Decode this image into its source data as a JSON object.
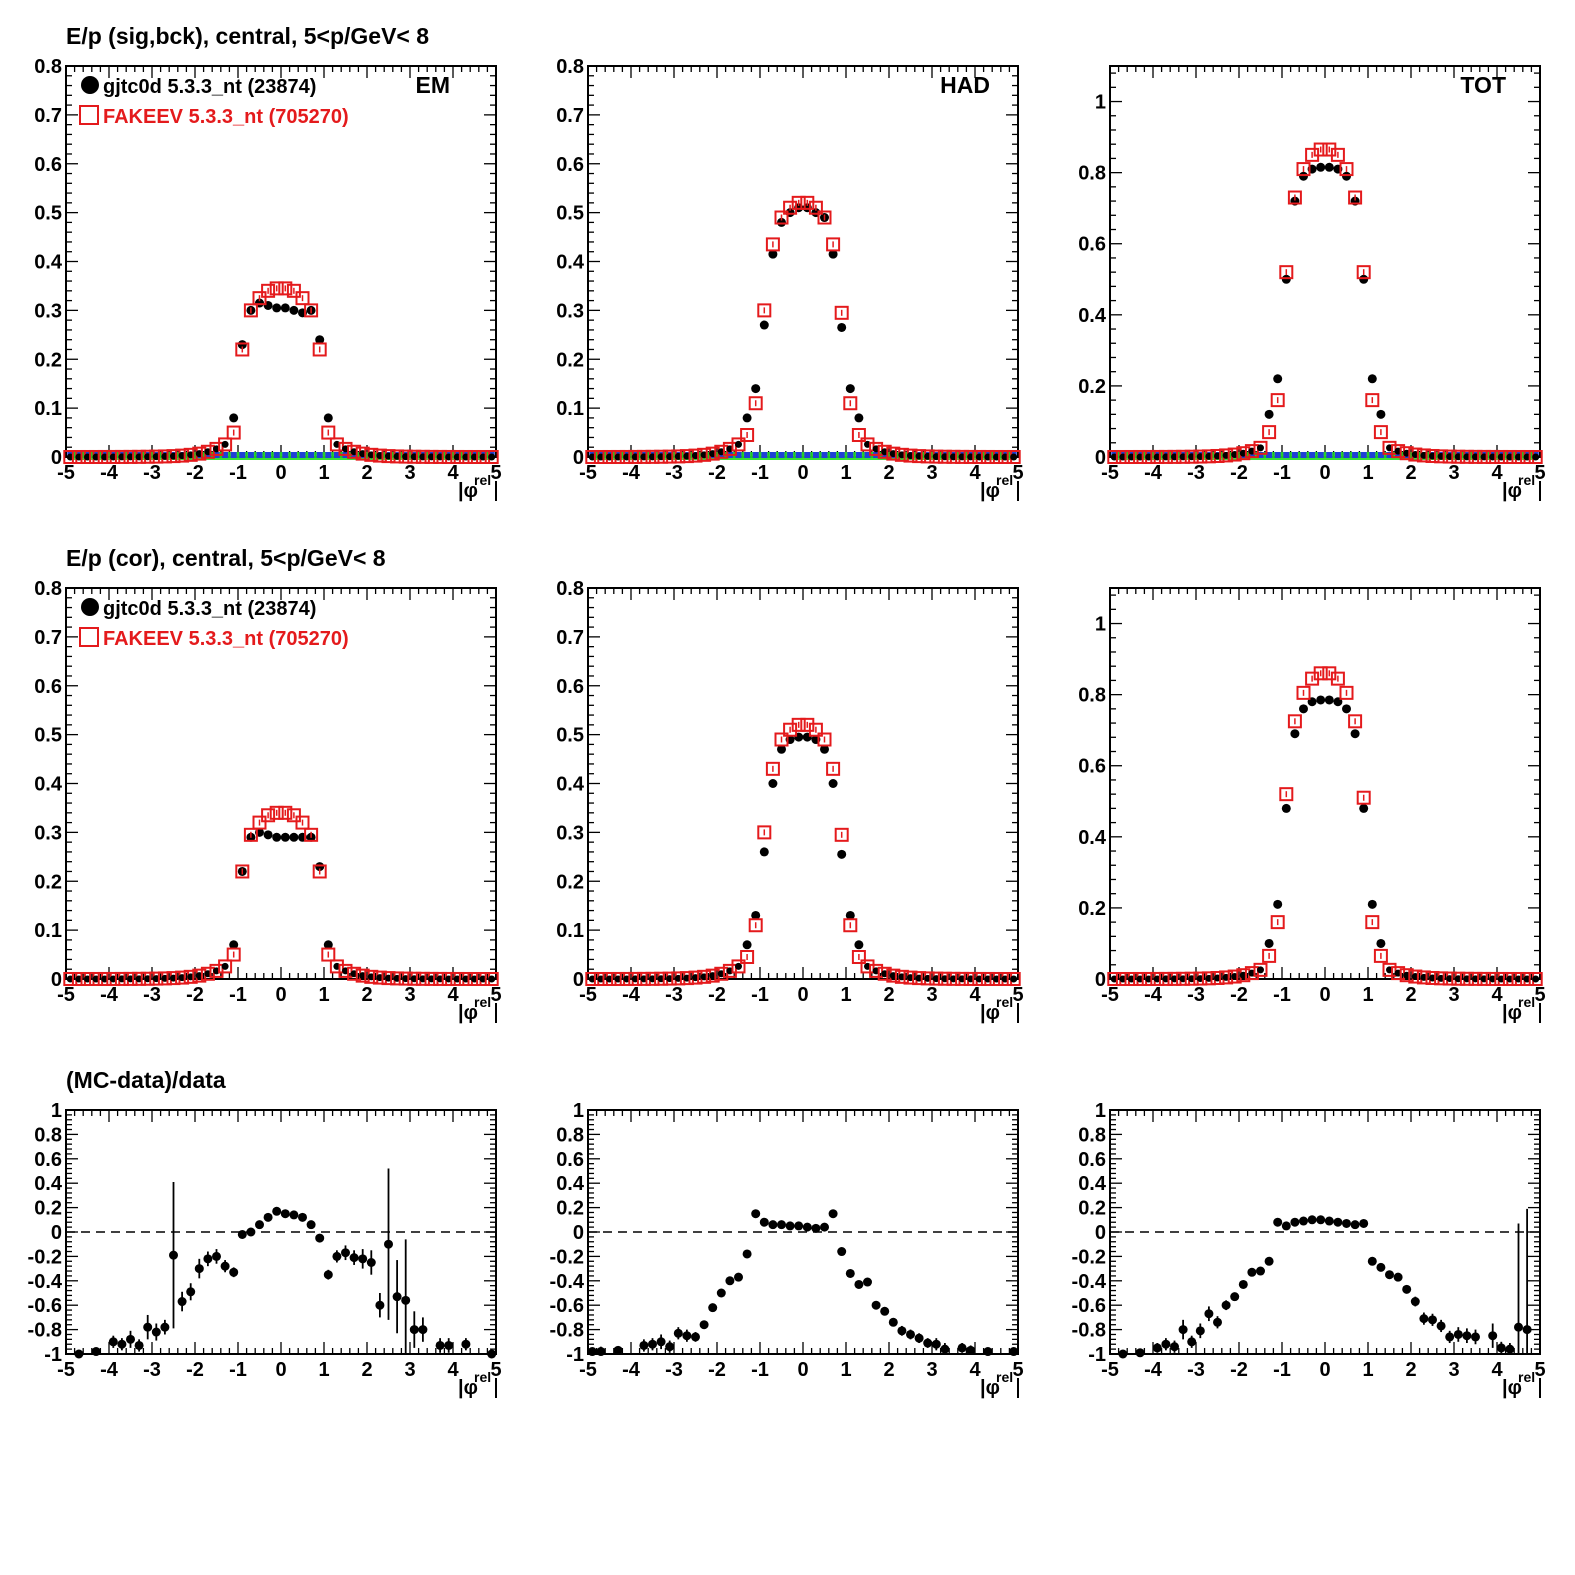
{
  "row_titles": [
    "E/p (sig,bck), central,  5<p/GeV< 8",
    "E/p (cor), central,  5<p/GeV< 8",
    "(MC-data)/data"
  ],
  "column_labels": [
    "EM",
    "HAD",
    "TOT"
  ],
  "legend": {
    "data": "gjtc0d 5.3.3_nt (23874)",
    "mc": "FAKEEV 5.3.3_nt (705270)"
  },
  "xaxis_label": "|φ rel|",
  "colors": {
    "data": "#000000",
    "mc": "#e41a1c",
    "bck_data": "#1f3fd6",
    "bck_mc": "#22dd22"
  },
  "chart_data": [
    {
      "type": "scatter",
      "panel": "row1-EM",
      "xlim": [
        -5,
        5
      ],
      "ylim": [
        0,
        0.8
      ],
      "yticks": [
        0,
        0.1,
        0.2,
        0.3,
        0.4,
        0.5,
        0.6,
        0.7,
        0.8
      ],
      "xticks": [
        -5,
        -4,
        -3,
        -2,
        -1,
        0,
        1,
        2,
        3,
        4,
        5
      ],
      "series": [
        {
          "name": "gjtc0d 5.3.3_nt (23874)",
          "marker": "filled-circle",
          "x": [
            -1.1,
            -0.9,
            -0.7,
            -0.5,
            -0.3,
            -0.1,
            0.1,
            0.3,
            0.5,
            0.7,
            0.9,
            1.1
          ],
          "y": [
            0.08,
            0.23,
            0.3,
            0.315,
            0.31,
            0.305,
            0.305,
            0.3,
            0.295,
            0.3,
            0.24,
            0.08
          ]
        },
        {
          "name": "FAKEEV 5.3.3_nt (705270)",
          "marker": "open-square",
          "x": [
            -1.1,
            -0.9,
            -0.7,
            -0.5,
            -0.3,
            -0.1,
            0.1,
            0.3,
            0.5,
            0.7,
            0.9,
            1.1
          ],
          "y": [
            0.05,
            0.22,
            0.3,
            0.325,
            0.34,
            0.345,
            0.345,
            0.34,
            0.325,
            0.3,
            0.22,
            0.05
          ]
        }
      ]
    },
    {
      "type": "scatter",
      "panel": "row1-HAD",
      "xlim": [
        -5,
        5
      ],
      "ylim": [
        0,
        0.8
      ],
      "yticks": [
        0,
        0.1,
        0.2,
        0.3,
        0.4,
        0.5,
        0.6,
        0.7,
        0.8
      ],
      "xticks": [
        -5,
        -4,
        -3,
        -2,
        -1,
        0,
        1,
        2,
        3,
        4,
        5
      ],
      "series": [
        {
          "marker": "filled-circle",
          "x": [
            -1.3,
            -1.1,
            -0.9,
            -0.7,
            -0.5,
            -0.3,
            -0.1,
            0.1,
            0.3,
            0.5,
            0.7,
            0.9,
            1.1,
            1.3
          ],
          "y": [
            0.08,
            0.14,
            0.27,
            0.415,
            0.48,
            0.5,
            0.51,
            0.51,
            0.5,
            0.49,
            0.415,
            0.265,
            0.14,
            0.08
          ]
        },
        {
          "marker": "open-square",
          "x": [
            -1.3,
            -1.1,
            -0.9,
            -0.7,
            -0.5,
            -0.3,
            -0.1,
            0.1,
            0.3,
            0.5,
            0.7,
            0.9,
            1.1,
            1.3
          ],
          "y": [
            0.045,
            0.11,
            0.3,
            0.435,
            0.49,
            0.51,
            0.52,
            0.52,
            0.51,
            0.49,
            0.435,
            0.295,
            0.11,
            0.045
          ]
        }
      ]
    },
    {
      "type": "scatter",
      "panel": "row1-TOT",
      "xlim": [
        -5,
        5
      ],
      "ylim": [
        0,
        1.1
      ],
      "yticks": [
        0,
        0.2,
        0.4,
        0.6,
        0.8,
        1
      ],
      "xticks": [
        -5,
        -4,
        -3,
        -2,
        -1,
        0,
        1,
        2,
        3,
        4,
        5
      ],
      "series": [
        {
          "marker": "filled-circle",
          "x": [
            -1.3,
            -1.1,
            -0.9,
            -0.7,
            -0.5,
            -0.3,
            -0.1,
            0.1,
            0.3,
            0.5,
            0.7,
            0.9,
            1.1,
            1.3
          ],
          "y": [
            0.12,
            0.22,
            0.5,
            0.72,
            0.79,
            0.81,
            0.815,
            0.815,
            0.81,
            0.79,
            0.72,
            0.5,
            0.22,
            0.12
          ]
        },
        {
          "marker": "open-square",
          "x": [
            -1.3,
            -1.1,
            -0.9,
            -0.7,
            -0.5,
            -0.3,
            -0.1,
            0.1,
            0.3,
            0.5,
            0.7,
            0.9,
            1.1,
            1.3
          ],
          "y": [
            0.07,
            0.16,
            0.52,
            0.73,
            0.81,
            0.85,
            0.865,
            0.865,
            0.85,
            0.81,
            0.73,
            0.52,
            0.16,
            0.07
          ]
        }
      ]
    },
    {
      "type": "scatter",
      "panel": "row2-EM",
      "xlim": [
        -5,
        5
      ],
      "ylim": [
        0,
        0.8
      ],
      "yticks": [
        0,
        0.1,
        0.2,
        0.3,
        0.4,
        0.5,
        0.6,
        0.7,
        0.8
      ],
      "xticks": [
        -5,
        -4,
        -3,
        -2,
        -1,
        0,
        1,
        2,
        3,
        4,
        5
      ],
      "series": [
        {
          "name": "gjtc0d 5.3.3_nt (23874)",
          "marker": "filled-circle",
          "x": [
            -1.1,
            -0.9,
            -0.7,
            -0.5,
            -0.3,
            -0.1,
            0.1,
            0.3,
            0.5,
            0.7,
            0.9,
            1.1
          ],
          "y": [
            0.07,
            0.22,
            0.29,
            0.3,
            0.295,
            0.29,
            0.29,
            0.29,
            0.29,
            0.29,
            0.23,
            0.07
          ]
        },
        {
          "name": "FAKEEV 5.3.3_nt (705270)",
          "marker": "open-square",
          "x": [
            -1.1,
            -0.9,
            -0.7,
            -0.5,
            -0.3,
            -0.1,
            0.1,
            0.3,
            0.5,
            0.7,
            0.9,
            1.1
          ],
          "y": [
            0.05,
            0.22,
            0.295,
            0.32,
            0.335,
            0.34,
            0.34,
            0.335,
            0.32,
            0.295,
            0.22,
            0.05
          ]
        }
      ]
    },
    {
      "type": "scatter",
      "panel": "row2-HAD",
      "xlim": [
        -5,
        5
      ],
      "ylim": [
        0,
        0.8
      ],
      "yticks": [
        0,
        0.1,
        0.2,
        0.3,
        0.4,
        0.5,
        0.6,
        0.7,
        0.8
      ],
      "xticks": [
        -5,
        -4,
        -3,
        -2,
        -1,
        0,
        1,
        2,
        3,
        4,
        5
      ],
      "series": [
        {
          "marker": "filled-circle",
          "x": [
            -1.3,
            -1.1,
            -0.9,
            -0.7,
            -0.5,
            -0.3,
            -0.1,
            0.1,
            0.3,
            0.5,
            0.7,
            0.9,
            1.1,
            1.3
          ],
          "y": [
            0.07,
            0.13,
            0.26,
            0.4,
            0.47,
            0.49,
            0.495,
            0.495,
            0.49,
            0.47,
            0.4,
            0.255,
            0.13,
            0.07
          ]
        },
        {
          "marker": "open-square",
          "x": [
            -1.3,
            -1.1,
            -0.9,
            -0.7,
            -0.5,
            -0.3,
            -0.1,
            0.1,
            0.3,
            0.5,
            0.7,
            0.9,
            1.1,
            1.3
          ],
          "y": [
            0.045,
            0.11,
            0.3,
            0.43,
            0.49,
            0.51,
            0.52,
            0.52,
            0.51,
            0.49,
            0.43,
            0.295,
            0.11,
            0.045
          ]
        }
      ]
    },
    {
      "type": "scatter",
      "panel": "row2-TOT",
      "xlim": [
        -5,
        5
      ],
      "ylim": [
        0,
        1.1
      ],
      "yticks": [
        0,
        0.2,
        0.4,
        0.6,
        0.8,
        1
      ],
      "xticks": [
        -5,
        -4,
        -3,
        -2,
        -1,
        0,
        1,
        2,
        3,
        4,
        5
      ],
      "series": [
        {
          "marker": "filled-circle",
          "x": [
            -1.3,
            -1.1,
            -0.9,
            -0.7,
            -0.5,
            -0.3,
            -0.1,
            0.1,
            0.3,
            0.5,
            0.7,
            0.9,
            1.1,
            1.3
          ],
          "y": [
            0.1,
            0.21,
            0.48,
            0.69,
            0.76,
            0.78,
            0.785,
            0.785,
            0.78,
            0.76,
            0.69,
            0.48,
            0.21,
            0.1
          ]
        },
        {
          "marker": "open-square",
          "x": [
            -1.3,
            -1.1,
            -0.9,
            -0.7,
            -0.5,
            -0.3,
            -0.1,
            0.1,
            0.3,
            0.5,
            0.7,
            0.9,
            1.1,
            1.3
          ],
          "y": [
            0.065,
            0.16,
            0.52,
            0.725,
            0.805,
            0.845,
            0.86,
            0.86,
            0.845,
            0.805,
            0.725,
            0.51,
            0.16,
            0.065
          ]
        }
      ]
    },
    {
      "type": "scatter",
      "panel": "row3-EM",
      "xlim": [
        -5,
        5
      ],
      "ylim": [
        -1,
        1
      ],
      "yticks": [
        -1,
        -0.8,
        -0.6,
        -0.4,
        -0.2,
        0,
        0.2,
        0.4,
        0.6,
        0.8,
        1
      ],
      "xticks": [
        -5,
        -4,
        -3,
        -2,
        -1,
        0,
        1,
        2,
        3,
        4,
        5
      ],
      "reference_line": 0,
      "series": [
        {
          "marker": "filled-circle",
          "x": [
            -4.7,
            -4.3,
            -3.9,
            -3.7,
            -3.5,
            -3.3,
            -3.1,
            -2.9,
            -2.7,
            -2.5,
            -2.3,
            -2.1,
            -1.9,
            -1.7,
            -1.5,
            -1.3,
            -1.1,
            -0.9,
            -0.7,
            -0.5,
            -0.3,
            -0.1,
            0.1,
            0.3,
            0.5,
            0.7,
            0.9,
            1.1,
            1.3,
            1.5,
            1.7,
            1.9,
            2.1,
            2.3,
            2.5,
            2.7,
            2.9,
            3.1,
            3.3,
            3.7,
            3.9,
            4.3,
            4.9
          ],
          "y": [
            -1,
            -0.98,
            -0.9,
            -0.92,
            -0.88,
            -0.93,
            -0.78,
            -0.82,
            -0.78,
            -0.19,
            -0.57,
            -0.49,
            -0.3,
            -0.22,
            -0.2,
            -0.28,
            -0.33,
            -0.02,
            0.0,
            0.06,
            0.12,
            0.17,
            0.15,
            0.14,
            0.12,
            0.06,
            -0.05,
            -0.35,
            -0.2,
            -0.17,
            -0.21,
            -0.22,
            -0.25,
            -0.6,
            -0.1,
            -0.53,
            -0.56,
            -0.8,
            -0.8,
            -0.93,
            -0.93,
            -0.92,
            -1
          ],
          "err": [
            0,
            0,
            0.05,
            0.05,
            0.07,
            0.05,
            0.1,
            0.07,
            0.06,
            0.6,
            0.08,
            0.07,
            0.08,
            0.06,
            0.06,
            0.05,
            0.04,
            0.03,
            0.03,
            0.02,
            0.02,
            0.02,
            0.02,
            0.02,
            0.02,
            0.03,
            0.03,
            0.04,
            0.05,
            0.06,
            0.06,
            0.08,
            0.1,
            0.1,
            0.62,
            0.3,
            0.5,
            0.15,
            0.1,
            0.06,
            0.06,
            0.05,
            0
          ]
        }
      ]
    },
    {
      "type": "scatter",
      "panel": "row3-HAD",
      "xlim": [
        -5,
        5
      ],
      "ylim": [
        -1,
        1
      ],
      "yticks": [
        -1,
        -0.8,
        -0.6,
        -0.4,
        -0.2,
        0,
        0.2,
        0.4,
        0.6,
        0.8,
        1
      ],
      "xticks": [
        -5,
        -4,
        -3,
        -2,
        -1,
        0,
        1,
        2,
        3,
        4,
        5
      ],
      "reference_line": 0,
      "series": [
        {
          "marker": "filled-circle",
          "x": [
            -4.9,
            -4.7,
            -4.3,
            -3.7,
            -3.5,
            -3.3,
            -3.1,
            -2.9,
            -2.7,
            -2.5,
            -2.3,
            -2.1,
            -1.9,
            -1.7,
            -1.5,
            -1.3,
            -1.1,
            -0.9,
            -0.7,
            -0.5,
            -0.3,
            -0.1,
            0.1,
            0.3,
            0.5,
            0.7,
            0.9,
            1.1,
            1.3,
            1.5,
            1.7,
            1.9,
            2.1,
            2.3,
            2.5,
            2.7,
            2.9,
            3.1,
            3.3,
            3.7,
            3.9,
            4.3,
            4.9
          ],
          "y": [
            -0.98,
            -0.98,
            -0.97,
            -0.93,
            -0.92,
            -0.9,
            -0.94,
            -0.83,
            -0.85,
            -0.86,
            -0.76,
            -0.62,
            -0.5,
            -0.4,
            -0.37,
            -0.18,
            0.15,
            0.08,
            0.06,
            0.06,
            0.05,
            0.05,
            0.04,
            0.03,
            0.04,
            0.15,
            -0.16,
            -0.34,
            -0.43,
            -0.41,
            -0.6,
            -0.65,
            -0.74,
            -0.81,
            -0.84,
            -0.87,
            -0.91,
            -0.92,
            -0.96,
            -0.95,
            -0.97,
            -0.98,
            -0.98
          ],
          "err": [
            0.03,
            0.04,
            0.03,
            0.05,
            0.05,
            0.06,
            0.05,
            0.05,
            0.05,
            0.04,
            0.03,
            0.03,
            0.03,
            0.02,
            0.02,
            0.02,
            0.01,
            0.01,
            0.01,
            0.01,
            0.01,
            0.01,
            0.01,
            0.01,
            0.01,
            0.01,
            0.02,
            0.02,
            0.02,
            0.03,
            0.03,
            0.03,
            0.03,
            0.04,
            0.04,
            0.04,
            0.04,
            0.05,
            0.05,
            0.04,
            0.04,
            0.03,
            0.03
          ]
        }
      ]
    },
    {
      "type": "scatter",
      "panel": "row3-TOT",
      "xlim": [
        -5,
        5
      ],
      "ylim": [
        -1,
        1
      ],
      "yticks": [
        -1,
        -0.8,
        -0.6,
        -0.4,
        -0.2,
        0,
        0.2,
        0.4,
        0.6,
        0.8,
        1
      ],
      "xticks": [
        -5,
        -4,
        -3,
        -2,
        -1,
        0,
        1,
        2,
        3,
        4,
        5
      ],
      "reference_line": 0,
      "series": [
        {
          "marker": "filled-circle",
          "x": [
            -4.7,
            -4.3,
            -3.9,
            -3.7,
            -3.5,
            -3.3,
            -3.1,
            -2.9,
            -2.7,
            -2.5,
            -2.3,
            -2.1,
            -1.9,
            -1.7,
            -1.5,
            -1.3,
            -1.1,
            -0.9,
            -0.7,
            -0.5,
            -0.3,
            -0.1,
            0.1,
            0.3,
            0.5,
            0.7,
            0.9,
            1.1,
            1.3,
            1.5,
            1.7,
            1.9,
            2.1,
            2.3,
            2.5,
            2.7,
            2.9,
            3.1,
            3.3,
            3.5,
            3.9,
            4.1,
            4.3,
            4.5,
            4.7
          ],
          "y": [
            -1,
            -0.99,
            -0.95,
            -0.92,
            -0.94,
            -0.8,
            -0.9,
            -0.81,
            -0.67,
            -0.74,
            -0.6,
            -0.53,
            -0.43,
            -0.33,
            -0.32,
            -0.24,
            0.08,
            0.05,
            0.08,
            0.09,
            0.1,
            0.1,
            0.09,
            0.08,
            0.07,
            0.06,
            0.07,
            -0.24,
            -0.29,
            -0.35,
            -0.37,
            -0.47,
            -0.57,
            -0.71,
            -0.72,
            -0.77,
            -0.86,
            -0.84,
            -0.85,
            -0.86,
            -0.85,
            -0.95,
            -0.96,
            -0.78,
            -0.8
          ],
          "err": [
            0,
            0.02,
            0.04,
            0.05,
            0.05,
            0.08,
            0.05,
            0.06,
            0.06,
            0.05,
            0.04,
            0.03,
            0.03,
            0.03,
            0.02,
            0.02,
            0.01,
            0.01,
            0.01,
            0.01,
            0.01,
            0.01,
            0.01,
            0.01,
            0.01,
            0.01,
            0.01,
            0.02,
            0.02,
            0.03,
            0.03,
            0.03,
            0.04,
            0.05,
            0.05,
            0.05,
            0.05,
            0.06,
            0.06,
            0.06,
            0.1,
            0.05,
            0.05,
            0.85,
            0.99
          ]
        }
      ]
    }
  ]
}
